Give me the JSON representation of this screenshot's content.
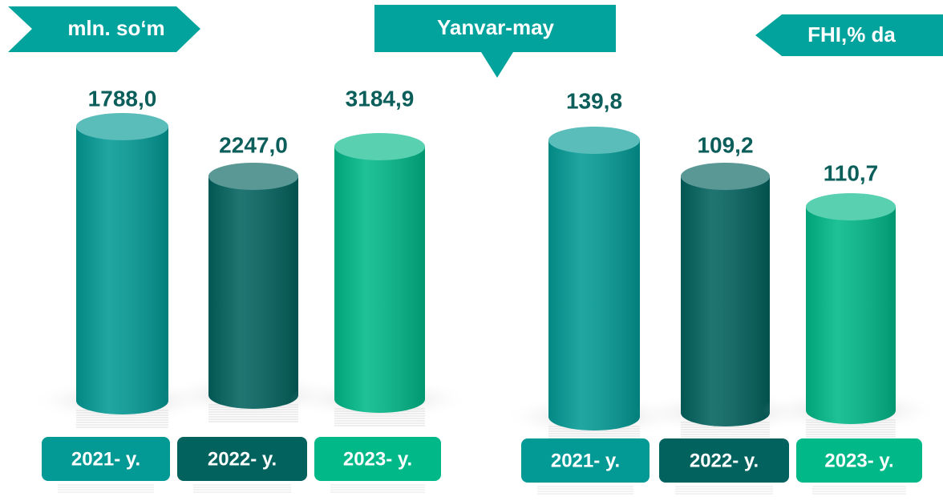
{
  "header": {
    "left_unit": "mln. so‘m",
    "period": "Yanvar-may",
    "right_unit": "FHI,% da"
  },
  "panels": [
    {
      "items": [
        {
          "value": "1788,0",
          "year": "2021- y."
        },
        {
          "value": "2247,0",
          "year": "2022- y."
        },
        {
          "value": "3184,9",
          "year": "2023- y."
        }
      ]
    },
    {
      "items": [
        {
          "value": "139,8",
          "year": "2021- y."
        },
        {
          "value": "109,2",
          "year": "2022- y."
        },
        {
          "value": "110,7",
          "year": "2023- y."
        }
      ]
    }
  ]
}
